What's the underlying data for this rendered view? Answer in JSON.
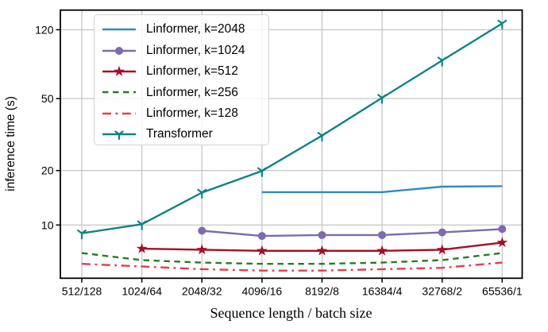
{
  "chart_data": {
    "type": "line",
    "title": "",
    "xlabel": "Sequence length / batch size",
    "ylabel": "inference time (s)",
    "x_categories": [
      "512/128",
      "1024/64",
      "2048/32",
      "4096/16",
      "8192/8",
      "16384/4",
      "32768/2",
      "65536/1"
    ],
    "y_scale": "log",
    "y_ticks": [
      10,
      20,
      50,
      120
    ],
    "ylim": [
      5.1,
      154
    ],
    "grid": true,
    "legend_position": "upper-left",
    "colors": {
      "grid": "#c5c5c5",
      "axis": "#000000",
      "legend_border": "#d3d3d3"
    },
    "series": [
      {
        "name": "Linformer, k=2048",
        "color": "#2f8bc2",
        "style": "solid",
        "marker": "none",
        "start_index": 3,
        "values": [
          15.2,
          15.2,
          15.2,
          16.3,
          16.4
        ]
      },
      {
        "name": "Linformer, k=1024",
        "color": "#7d6ab0",
        "style": "solid",
        "marker": "circle",
        "start_index": 2,
        "values": [
          9.3,
          8.7,
          8.8,
          8.8,
          9.1,
          9.5
        ]
      },
      {
        "name": "Linformer, k=512",
        "color": "#a40d28",
        "style": "solid",
        "marker": "star",
        "start_index": 1,
        "values": [
          7.4,
          7.3,
          7.2,
          7.2,
          7.2,
          7.3,
          8.0
        ]
      },
      {
        "name": "Linformer, k=256",
        "color": "#267c26",
        "style": "dashed",
        "marker": "none",
        "start_index": 0,
        "values": [
          7.0,
          6.4,
          6.2,
          6.1,
          6.1,
          6.2,
          6.4,
          7.0
        ]
      },
      {
        "name": "Linformer, k=128",
        "color": "#e03e4e",
        "style": "dashdot",
        "marker": "none",
        "start_index": 0,
        "values": [
          6.1,
          5.9,
          5.7,
          5.6,
          5.6,
          5.7,
          5.8,
          6.2
        ]
      },
      {
        "name": "Transformer",
        "color": "#0d8486",
        "style": "solid",
        "marker": "tri-down",
        "start_index": 0,
        "values": [
          9.0,
          10.1,
          15.1,
          19.9,
          31.2,
          50.5,
          81.2,
          130
        ]
      }
    ]
  }
}
